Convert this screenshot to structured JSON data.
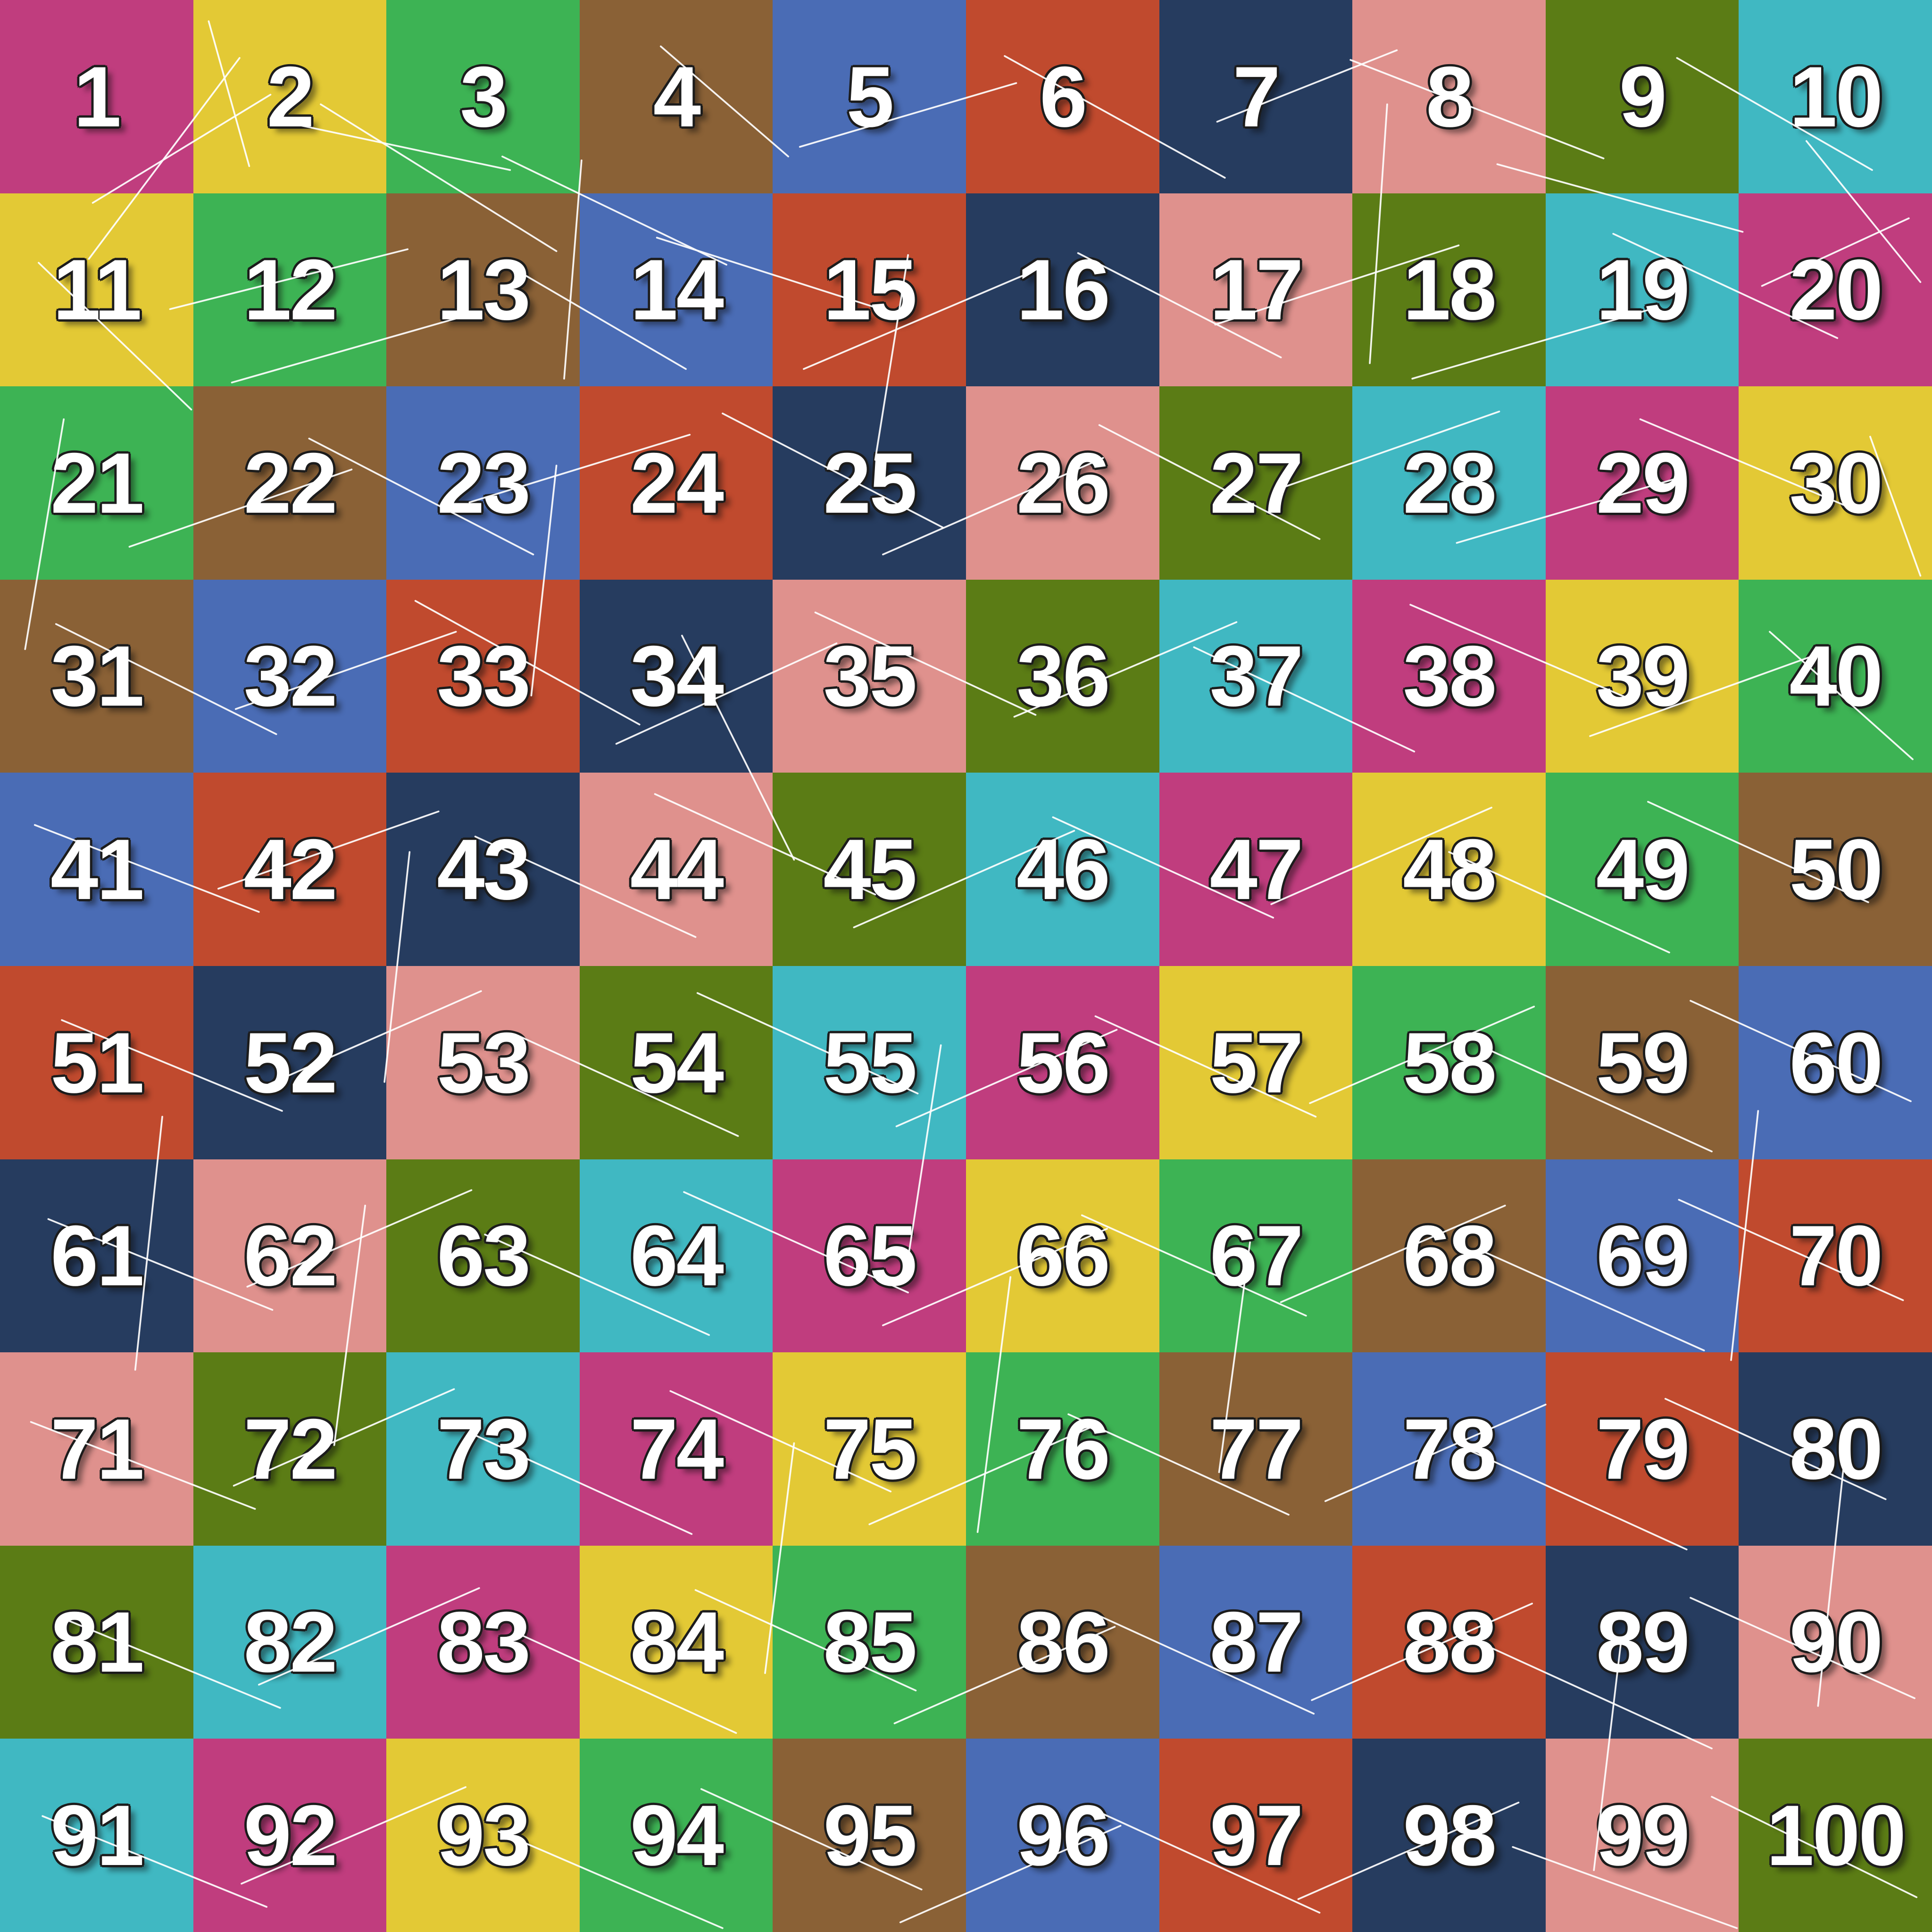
{
  "board": {
    "rows": 10,
    "cols": 10,
    "palette": [
      {
        "name": "magenta",
        "hex": "#c03d7e"
      },
      {
        "name": "yellow",
        "hex": "#e3c935"
      },
      {
        "name": "green",
        "hex": "#3db354"
      },
      {
        "name": "brown",
        "hex": "#8a6136"
      },
      {
        "name": "blue",
        "hex": "#4a6cb5"
      },
      {
        "name": "red",
        "hex": "#c04a2e"
      },
      {
        "name": "navy",
        "hex": "#263c5f"
      },
      {
        "name": "salmon",
        "hex": "#df918d"
      },
      {
        "name": "olive",
        "hex": "#5b7c15"
      },
      {
        "name": "teal",
        "hex": "#40b8c2"
      }
    ],
    "cells": [
      {
        "label": "1",
        "color_index": 0
      },
      {
        "label": "2",
        "color_index": 1
      },
      {
        "label": "3",
        "color_index": 2
      },
      {
        "label": "4",
        "color_index": 3
      },
      {
        "label": "5",
        "color_index": 4
      },
      {
        "label": "6",
        "color_index": 5
      },
      {
        "label": "7",
        "color_index": 6
      },
      {
        "label": "8",
        "color_index": 7
      },
      {
        "label": "9",
        "color_index": 8
      },
      {
        "label": "10",
        "color_index": 9
      },
      {
        "label": "11",
        "color_index": 1
      },
      {
        "label": "12",
        "color_index": 2
      },
      {
        "label": "13",
        "color_index": 3
      },
      {
        "label": "14",
        "color_index": 4
      },
      {
        "label": "15",
        "color_index": 5
      },
      {
        "label": "16",
        "color_index": 6
      },
      {
        "label": "17",
        "color_index": 7
      },
      {
        "label": "18",
        "color_index": 8
      },
      {
        "label": "19",
        "color_index": 9
      },
      {
        "label": "20",
        "color_index": 0
      },
      {
        "label": "21",
        "color_index": 2
      },
      {
        "label": "22",
        "color_index": 3
      },
      {
        "label": "23",
        "color_index": 4
      },
      {
        "label": "24",
        "color_index": 5
      },
      {
        "label": "25",
        "color_index": 6
      },
      {
        "label": "26",
        "color_index": 7
      },
      {
        "label": "27",
        "color_index": 8
      },
      {
        "label": "28",
        "color_index": 9
      },
      {
        "label": "29",
        "color_index": 0
      },
      {
        "label": "30",
        "color_index": 1
      },
      {
        "label": "31",
        "color_index": 3
      },
      {
        "label": "32",
        "color_index": 4
      },
      {
        "label": "33",
        "color_index": 5
      },
      {
        "label": "34",
        "color_index": 6
      },
      {
        "label": "35",
        "color_index": 7
      },
      {
        "label": "36",
        "color_index": 8
      },
      {
        "label": "37",
        "color_index": 9
      },
      {
        "label": "38",
        "color_index": 0
      },
      {
        "label": "39",
        "color_index": 1
      },
      {
        "label": "40",
        "color_index": 2
      },
      {
        "label": "41",
        "color_index": 4
      },
      {
        "label": "42",
        "color_index": 5
      },
      {
        "label": "43",
        "color_index": 6
      },
      {
        "label": "44",
        "color_index": 7
      },
      {
        "label": "45",
        "color_index": 8
      },
      {
        "label": "46",
        "color_index": 9
      },
      {
        "label": "47",
        "color_index": 0
      },
      {
        "label": "48",
        "color_index": 1
      },
      {
        "label": "49",
        "color_index": 2
      },
      {
        "label": "50",
        "color_index": 3
      },
      {
        "label": "51",
        "color_index": 5
      },
      {
        "label": "52",
        "color_index": 6
      },
      {
        "label": "53",
        "color_index": 7
      },
      {
        "label": "54",
        "color_index": 8
      },
      {
        "label": "55",
        "color_index": 9
      },
      {
        "label": "56",
        "color_index": 0
      },
      {
        "label": "57",
        "color_index": 1
      },
      {
        "label": "58",
        "color_index": 2
      },
      {
        "label": "59",
        "color_index": 3
      },
      {
        "label": "60",
        "color_index": 4
      },
      {
        "label": "61",
        "color_index": 6
      },
      {
        "label": "62",
        "color_index": 7
      },
      {
        "label": "63",
        "color_index": 8
      },
      {
        "label": "64",
        "color_index": 9
      },
      {
        "label": "65",
        "color_index": 0
      },
      {
        "label": "66",
        "color_index": 1
      },
      {
        "label": "67",
        "color_index": 2
      },
      {
        "label": "68",
        "color_index": 3
      },
      {
        "label": "69",
        "color_index": 4
      },
      {
        "label": "70",
        "color_index": 5
      },
      {
        "label": "71",
        "color_index": 7
      },
      {
        "label": "72",
        "color_index": 8
      },
      {
        "label": "73",
        "color_index": 9
      },
      {
        "label": "74",
        "color_index": 0
      },
      {
        "label": "75",
        "color_index": 1
      },
      {
        "label": "76",
        "color_index": 2
      },
      {
        "label": "77",
        "color_index": 3
      },
      {
        "label": "78",
        "color_index": 4
      },
      {
        "label": "79",
        "color_index": 5
      },
      {
        "label": "80",
        "color_index": 6
      },
      {
        "label": "81",
        "color_index": 8
      },
      {
        "label": "82",
        "color_index": 9
      },
      {
        "label": "83",
        "color_index": 0
      },
      {
        "label": "84",
        "color_index": 1
      },
      {
        "label": "85",
        "color_index": 2
      },
      {
        "label": "86",
        "color_index": 3
      },
      {
        "label": "87",
        "color_index": 4
      },
      {
        "label": "88",
        "color_index": 5
      },
      {
        "label": "89",
        "color_index": 6
      },
      {
        "label": "90",
        "color_index": 7
      },
      {
        "label": "91",
        "color_index": 9
      },
      {
        "label": "92",
        "color_index": 0
      },
      {
        "label": "93",
        "color_index": 1
      },
      {
        "label": "94",
        "color_index": 2
      },
      {
        "label": "95",
        "color_index": 3
      },
      {
        "label": "96",
        "color_index": 4
      },
      {
        "label": "97",
        "color_index": 5
      },
      {
        "label": "98",
        "color_index": 6
      },
      {
        "label": "99",
        "color_index": 7
      },
      {
        "label": "100",
        "color_index": 8
      }
    ]
  },
  "number_style": {
    "fill": "#ffffff",
    "outline": "#1c1c1c"
  },
  "decor": {
    "line_color": "#ffffff",
    "line_opacity": 0.92,
    "line_width": 0.09,
    "lines": [
      [
        12.4,
        3.0,
        4.6,
        13.4
      ],
      [
        4.8,
        10.5,
        14.0,
        4.9
      ],
      [
        14.2,
        6.2,
        26.4,
        8.8
      ],
      [
        16.6,
        5.4,
        28.8,
        13.0
      ],
      [
        10.8,
        1.1,
        12.9,
        8.6
      ],
      [
        34.2,
        2.4,
        40.8,
        8.1
      ],
      [
        41.4,
        7.6,
        52.6,
        4.3
      ],
      [
        52.0,
        2.9,
        63.4,
        9.2
      ],
      [
        63.0,
        6.3,
        72.3,
        2.6
      ],
      [
        69.9,
        3.1,
        83.0,
        8.2
      ],
      [
        71.8,
        5.4,
        70.9,
        18.8
      ],
      [
        77.5,
        8.5,
        90.2,
        12.0
      ],
      [
        86.8,
        3.0,
        96.9,
        8.8
      ],
      [
        93.5,
        7.3,
        99.4,
        14.6
      ],
      [
        26.0,
        8.1,
        37.6,
        13.7
      ],
      [
        2.0,
        13.6,
        9.9,
        21.2
      ],
      [
        8.8,
        16.0,
        21.1,
        12.9
      ],
      [
        12.0,
        19.8,
        23.9,
        16.4
      ],
      [
        27.1,
        14.2,
        35.5,
        19.1
      ],
      [
        34.0,
        12.3,
        45.9,
        16.1
      ],
      [
        41.6,
        19.1,
        53.1,
        14.2
      ],
      [
        55.8,
        13.1,
        66.3,
        18.5
      ],
      [
        62.9,
        16.8,
        75.5,
        12.7
      ],
      [
        73.1,
        19.6,
        85.8,
        15.9
      ],
      [
        83.5,
        12.1,
        95.1,
        17.5
      ],
      [
        91.2,
        14.8,
        98.8,
        11.3
      ],
      [
        47.0,
        13.2,
        45.3,
        23.8
      ],
      [
        3.3,
        21.7,
        1.3,
        33.6
      ],
      [
        6.7,
        28.3,
        18.2,
        24.3
      ],
      [
        16.0,
        22.7,
        27.6,
        28.7
      ],
      [
        24.3,
        26.0,
        35.7,
        22.5
      ],
      [
        37.4,
        21.4,
        48.8,
        27.3
      ],
      [
        45.7,
        28.7,
        57.1,
        23.7
      ],
      [
        56.9,
        22.0,
        68.3,
        27.9
      ],
      [
        66.2,
        25.3,
        77.6,
        21.3
      ],
      [
        75.4,
        28.1,
        87.0,
        24.7
      ],
      [
        84.9,
        21.7,
        96.3,
        26.5
      ],
      [
        28.8,
        24.1,
        27.5,
        36.0
      ],
      [
        96.8,
        22.6,
        99.4,
        29.8
      ],
      [
        2.9,
        32.3,
        14.3,
        38.0
      ],
      [
        12.2,
        36.7,
        23.6,
        32.7
      ],
      [
        21.5,
        31.1,
        33.1,
        37.5
      ],
      [
        31.9,
        38.5,
        43.3,
        33.3
      ],
      [
        42.2,
        31.7,
        53.6,
        37.0
      ],
      [
        52.5,
        37.1,
        64.0,
        32.2
      ],
      [
        61.8,
        33.5,
        73.2,
        38.9
      ],
      [
        73.0,
        31.3,
        84.4,
        36.2
      ],
      [
        82.3,
        38.1,
        93.7,
        34.0
      ],
      [
        91.6,
        32.7,
        99.0,
        39.3
      ],
      [
        35.3,
        32.9,
        41.1,
        44.5
      ],
      [
        1.8,
        42.7,
        13.4,
        47.2
      ],
      [
        11.3,
        46.0,
        22.7,
        42.0
      ],
      [
        24.6,
        43.3,
        36.0,
        48.5
      ],
      [
        33.9,
        41.1,
        45.3,
        46.3
      ],
      [
        44.2,
        48.0,
        55.6,
        43.0
      ],
      [
        54.5,
        42.3,
        65.9,
        47.5
      ],
      [
        65.8,
        46.8,
        77.2,
        41.8
      ],
      [
        75.0,
        44.1,
        86.4,
        49.3
      ],
      [
        85.3,
        41.5,
        96.7,
        46.7
      ],
      [
        21.2,
        44.1,
        19.9,
        56.0
      ],
      [
        3.2,
        52.8,
        14.6,
        57.5
      ],
      [
        13.5,
        56.3,
        24.9,
        51.3
      ],
      [
        26.8,
        53.6,
        38.2,
        58.8
      ],
      [
        36.1,
        51.4,
        47.5,
        56.6
      ],
      [
        46.4,
        58.3,
        57.8,
        53.3
      ],
      [
        56.7,
        52.6,
        68.1,
        57.8
      ],
      [
        67.8,
        57.1,
        79.4,
        52.1
      ],
      [
        77.2,
        54.4,
        88.6,
        59.6
      ],
      [
        87.5,
        51.8,
        98.9,
        57.0
      ],
      [
        48.7,
        54.1,
        46.9,
        65.8
      ],
      [
        2.5,
        63.1,
        14.1,
        67.8
      ],
      [
        12.8,
        66.6,
        24.4,
        61.6
      ],
      [
        25.1,
        63.9,
        36.7,
        69.1
      ],
      [
        35.4,
        61.7,
        47.0,
        66.9
      ],
      [
        45.7,
        68.6,
        57.3,
        63.6
      ],
      [
        56.0,
        62.9,
        67.6,
        68.1
      ],
      [
        66.3,
        67.4,
        77.9,
        62.4
      ],
      [
        76.6,
        64.7,
        88.2,
        69.9
      ],
      [
        86.9,
        62.1,
        98.5,
        67.3
      ],
      [
        64.7,
        64.3,
        63.1,
        76.2
      ],
      [
        1.6,
        73.6,
        13.2,
        78.1
      ],
      [
        12.1,
        76.9,
        23.5,
        71.9
      ],
      [
        24.4,
        74.2,
        35.8,
        79.4
      ],
      [
        34.7,
        72.0,
        46.1,
        77.2
      ],
      [
        45.0,
        78.9,
        56.4,
        73.9
      ],
      [
        55.3,
        73.2,
        66.7,
        78.4
      ],
      [
        68.6,
        77.7,
        80.0,
        72.7
      ],
      [
        75.9,
        75.0,
        87.3,
        80.2
      ],
      [
        86.2,
        72.4,
        97.6,
        77.6
      ],
      [
        41.1,
        74.7,
        39.6,
        86.6
      ],
      [
        3.1,
        83.7,
        14.5,
        88.4
      ],
      [
        13.4,
        87.2,
        24.8,
        82.2
      ],
      [
        26.7,
        84.5,
        38.1,
        89.7
      ],
      [
        36.0,
        82.3,
        47.4,
        87.5
      ],
      [
        46.3,
        89.2,
        57.7,
        84.2
      ],
      [
        56.6,
        83.5,
        68.0,
        88.7
      ],
      [
        67.9,
        88.0,
        79.3,
        83.0
      ],
      [
        77.2,
        85.3,
        88.6,
        90.5
      ],
      [
        87.5,
        82.7,
        99.1,
        87.9
      ],
      [
        83.9,
        85.0,
        82.5,
        96.8
      ],
      [
        2.2,
        94.0,
        13.8,
        98.7
      ],
      [
        12.5,
        97.5,
        24.1,
        92.5
      ],
      [
        25.8,
        94.8,
        37.4,
        99.8
      ],
      [
        36.3,
        92.6,
        47.7,
        97.8
      ],
      [
        46.6,
        99.5,
        58.0,
        94.5
      ],
      [
        56.9,
        93.8,
        68.3,
        99.0
      ],
      [
        67.2,
        98.3,
        78.6,
        93.3
      ],
      [
        78.3,
        95.6,
        89.9,
        99.8
      ],
      [
        88.6,
        93.0,
        99.2,
        98.2
      ],
      [
        30.1,
        8.3,
        29.2,
        19.6
      ],
      [
        91.0,
        57.5,
        89.6,
        70.4
      ],
      [
        8.4,
        57.8,
        7.0,
        70.9
      ],
      [
        52.3,
        66.1,
        50.6,
        79.3
      ],
      [
        95.5,
        75.2,
        94.1,
        88.3
      ],
      [
        18.9,
        62.4,
        17.3,
        74.8
      ]
    ]
  }
}
